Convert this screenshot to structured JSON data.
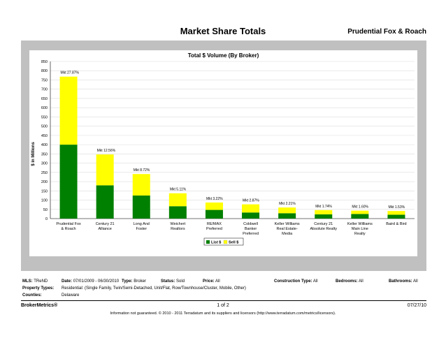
{
  "page": {
    "title": "Market Share Totals",
    "broker": "Prudential Fox & Roach"
  },
  "chart_data": {
    "type": "bar",
    "stacked": true,
    "title": "Total $ Volume (By Broker)",
    "ylabel": "$ in Millions",
    "xlabel": "",
    "ylim": [
      0,
      850
    ],
    "yticks": [
      0,
      50,
      100,
      150,
      200,
      250,
      300,
      350,
      400,
      450,
      500,
      550,
      600,
      650,
      700,
      750,
      800,
      850
    ],
    "grid": true,
    "legend_position": "bottom",
    "categories": [
      [
        "Prudential Fox",
        "& Roach"
      ],
      [
        "Century 21",
        "Alliance"
      ],
      [
        "Long And",
        "Foster"
      ],
      [
        "Weichert",
        "Realtors"
      ],
      [
        "RE/MAX",
        "Preferred"
      ],
      [
        "Coldwell",
        "Banker",
        "Preferred"
      ],
      [
        "Keller Williams",
        "Real Estate-",
        "Media"
      ],
      [
        "Century 21",
        "Absolute Realty"
      ],
      [
        "Keller Williams",
        "Main Line",
        "Realty"
      ],
      [
        "Baird & Bird"
      ]
    ],
    "series": [
      {
        "name": "List $",
        "color": "#008000",
        "values": [
          400,
          180,
          125,
          67,
          47,
          33,
          29,
          23,
          25,
          21
        ]
      },
      {
        "name": "Sell $",
        "color": "#ffff00",
        "values": [
          368,
          167,
          116,
          70,
          40,
          44,
          31,
          23,
          18,
          20
        ]
      }
    ],
    "annotations": [
      "Mkt 27.87%",
      "Mkt 12.56%",
      "Mkt 8.72%",
      "Mkt 5.11%",
      "Mkt 3.22%",
      "Mkt 2.87%",
      "Mkt 2.21%",
      "Mkt 1.74%",
      "Mkt 1.60%",
      "Mkt 1.53%"
    ]
  },
  "filters": {
    "mls_label": "MLS:",
    "mls_value": "TReND",
    "date_label": "Date:",
    "date_value": "07/01/2009 - 06/30/2010",
    "type_label": "Type:",
    "type_value": "Broker",
    "status_label": "Status:",
    "status_value": "Sold",
    "price_label": "Price:",
    "price_value": "All",
    "construction_label": "Construction Type:",
    "construction_value": "All",
    "bedrooms_label": "Bedrooms:",
    "bedrooms_value": "All",
    "bathrooms_label": "Bathrooms:",
    "bathrooms_value": "All",
    "property_label": "Property Types:",
    "property_value": "Residential: (Single Family, Twin/Semi-Detached, Unit/Flat, Row/Townhouse/Cluster, Mobile, Other)",
    "counties_label": "Counties:",
    "counties_value": "Delaware"
  },
  "footer": {
    "brand": "BrokerMetrics®",
    "page": "1 of 2",
    "date": "07/27/10",
    "disclaimer": "Information not guaranteed. © 2010 - 2011 Terradatum and its suppliers and licensors (http://www.terradatum.com/metrics/licensors)."
  }
}
